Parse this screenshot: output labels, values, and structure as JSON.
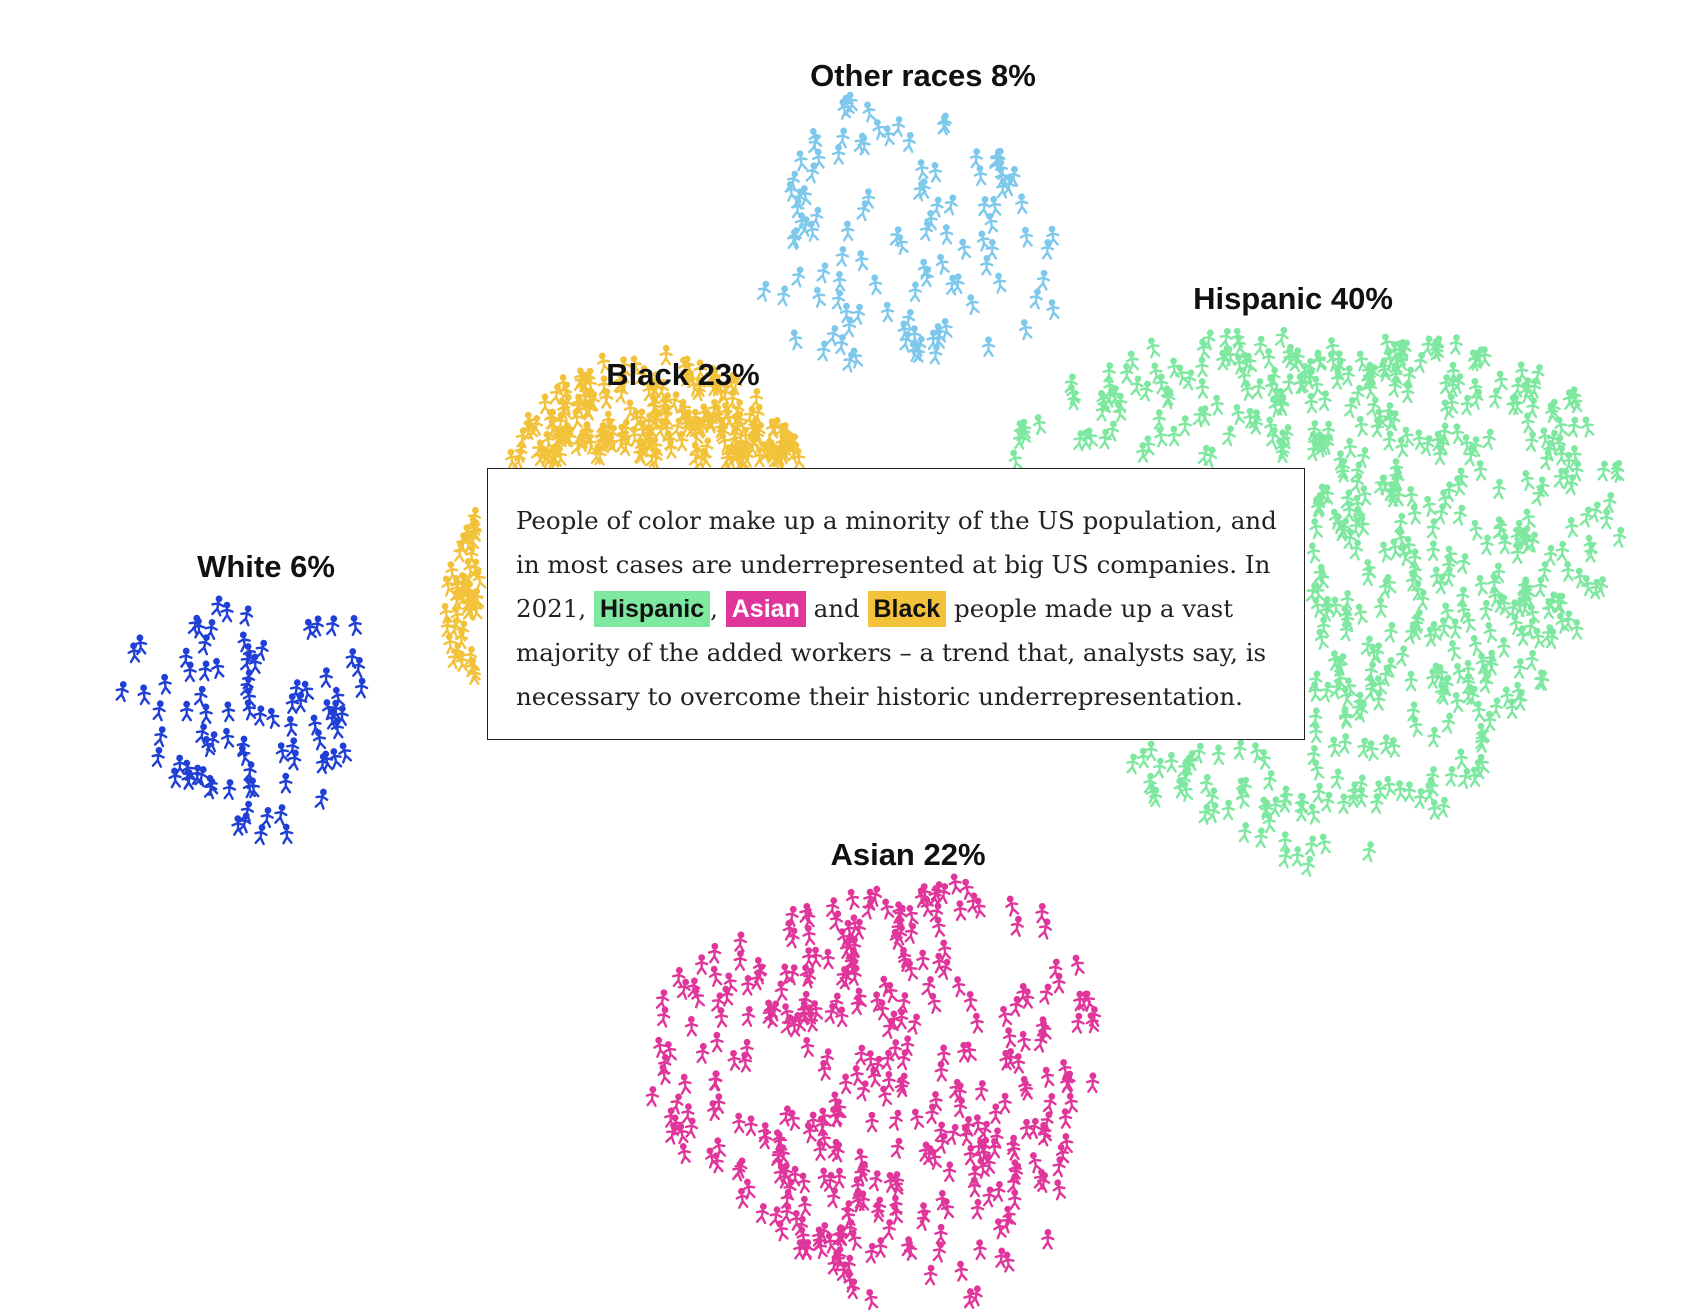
{
  "chart_data": {
    "type": "unit-cluster",
    "groups": [
      {
        "key": "other",
        "name": "Other races",
        "value": 8,
        "label": "Other races 8%",
        "color": "#7ec8ec"
      },
      {
        "key": "hispanic",
        "name": "Hispanic",
        "value": 40,
        "label": "Hispanic 40%",
        "color": "#7ee8a0"
      },
      {
        "key": "black",
        "name": "Black",
        "value": 23,
        "label": "Black 23%",
        "color": "#f2c23a"
      },
      {
        "key": "white",
        "name": "White",
        "value": 6,
        "label": "White 6%",
        "color": "#1f3fd6"
      },
      {
        "key": "asian",
        "name": "Asian",
        "value": 22,
        "label": "Asian 22%",
        "color": "#e0359a"
      }
    ]
  },
  "annotation": {
    "text_1": "People of color make up a minority of the US population, and in most cases are underrepresented at big US companies. In 2021,",
    "highlight_hispanic": "Hispanic",
    "sep_1": ",",
    "highlight_asian": "Asian",
    "sep_2": "and",
    "highlight_black": "Black",
    "text_2": "people made up a vast majority of the added workers – a trend that, analysts say, is necessary to overcome their historic underrepresentation.",
    "colors": {
      "hispanic_bg": "#7ee8a0",
      "hispanic_fg": "#111111",
      "asian_bg": "#e0359a",
      "asian_fg": "#ffffff",
      "black_bg": "#f2c23a",
      "black_fg": "#111111"
    }
  }
}
